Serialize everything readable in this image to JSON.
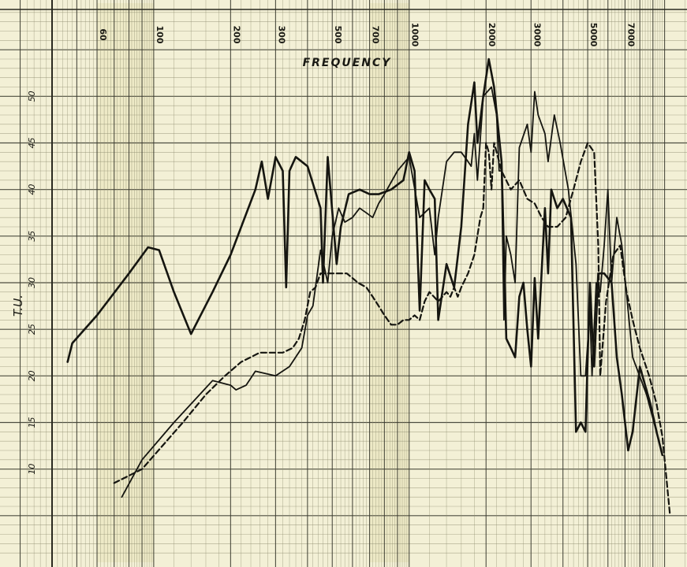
{
  "chart_data": {
    "type": "line",
    "title": "FREQUENCY",
    "ylabel": "T.U.",
    "x_scale": "log",
    "xlim": [
      40,
      11000
    ],
    "ylim": [
      0,
      60
    ],
    "x_ticks": [
      {
        "value": 60,
        "label": "60"
      },
      {
        "value": 100,
        "label": "100"
      },
      {
        "value": 200,
        "label": "200"
      },
      {
        "value": 300,
        "label": "300"
      },
      {
        "value": 500,
        "label": "500"
      },
      {
        "value": 700,
        "label": "700"
      },
      {
        "value": 1000,
        "label": "1000"
      },
      {
        "value": 2000,
        "label": "2000"
      },
      {
        "value": 3000,
        "label": "3000"
      },
      {
        "value": 5000,
        "label": "5000"
      },
      {
        "value": 7000,
        "label": "7000"
      }
    ],
    "y_ticks": [
      {
        "value": 10,
        "label": "10"
      },
      {
        "value": 15,
        "label": "15"
      },
      {
        "value": 20,
        "label": "20"
      },
      {
        "value": 25,
        "label": "25"
      },
      {
        "value": 30,
        "label": "30"
      },
      {
        "value": 35,
        "label": "35"
      },
      {
        "value": 40,
        "label": "40"
      },
      {
        "value": 45,
        "label": "45"
      },
      {
        "value": 50,
        "label": "50"
      }
    ],
    "grid": true,
    "series": [
      {
        "style": "solid",
        "points": [
          [
            46,
            21.5
          ],
          [
            48,
            23.5
          ],
          [
            60,
            26.5
          ],
          [
            80,
            31
          ],
          [
            95,
            33.8
          ],
          [
            105,
            33.5
          ],
          [
            120,
            29
          ],
          [
            140,
            24.5
          ],
          [
            170,
            29
          ],
          [
            200,
            33
          ],
          [
            250,
            40
          ],
          [
            265,
            43
          ],
          [
            280,
            39
          ],
          [
            300,
            43.5
          ],
          [
            320,
            42
          ],
          [
            330,
            29.5
          ],
          [
            340,
            42
          ],
          [
            360,
            43.5
          ],
          [
            400,
            42.5
          ],
          [
            450,
            38
          ],
          [
            460,
            30
          ],
          [
            480,
            43.5
          ],
          [
            520,
            32
          ],
          [
            540,
            36
          ],
          [
            580,
            39.5
          ],
          [
            640,
            40
          ],
          [
            700,
            39.5
          ],
          [
            760,
            39.5
          ],
          [
            850,
            40
          ],
          [
            950,
            41
          ],
          [
            1000,
            44
          ],
          [
            1050,
            42
          ],
          [
            1100,
            27
          ],
          [
            1150,
            41
          ],
          [
            1200,
            40
          ],
          [
            1260,
            39
          ],
          [
            1300,
            26
          ],
          [
            1400,
            32
          ],
          [
            1500,
            29.5
          ],
          [
            1600,
            36
          ],
          [
            1700,
            47
          ],
          [
            1800,
            51.5
          ],
          [
            1850,
            45
          ],
          [
            1950,
            50
          ],
          [
            2050,
            54
          ],
          [
            2150,
            51
          ],
          [
            2300,
            43
          ],
          [
            2400,
            24
          ],
          [
            2500,
            23
          ],
          [
            2600,
            22
          ],
          [
            2700,
            28.5
          ],
          [
            2800,
            30
          ],
          [
            2900,
            25
          ],
          [
            3000,
            21
          ],
          [
            3100,
            30.5
          ],
          [
            3200,
            24
          ],
          [
            3400,
            38
          ],
          [
            3500,
            31
          ],
          [
            3600,
            40
          ],
          [
            3800,
            38
          ],
          [
            4000,
            39
          ],
          [
            4300,
            37
          ],
          [
            4500,
            14
          ],
          [
            4700,
            15
          ],
          [
            4900,
            14
          ],
          [
            5100,
            30
          ],
          [
            5200,
            25
          ],
          [
            5300,
            21
          ],
          [
            5500,
            31
          ],
          [
            5800,
            31
          ],
          [
            6200,
            30
          ],
          [
            6500,
            22
          ],
          [
            6800,
            18
          ],
          [
            7200,
            12
          ],
          [
            7500,
            14
          ],
          [
            8000,
            21
          ],
          [
            8800,
            17
          ],
          [
            9300,
            14
          ],
          [
            9800,
            11.5
          ]
        ]
      },
      {
        "style": "solid-thin",
        "points": [
          [
            75,
            7
          ],
          [
            90,
            11
          ],
          [
            120,
            15
          ],
          [
            170,
            19.5
          ],
          [
            200,
            19
          ],
          [
            210,
            18.5
          ],
          [
            230,
            19
          ],
          [
            250,
            20.5
          ],
          [
            300,
            20
          ],
          [
            340,
            21
          ],
          [
            380,
            23
          ],
          [
            400,
            26.5
          ],
          [
            420,
            27.5
          ],
          [
            450,
            33.5
          ],
          [
            480,
            30
          ],
          [
            500,
            35
          ],
          [
            530,
            38
          ],
          [
            560,
            36.5
          ],
          [
            600,
            37
          ],
          [
            640,
            38
          ],
          [
            680,
            37.5
          ],
          [
            720,
            37
          ],
          [
            760,
            38.5
          ],
          [
            800,
            39.5
          ],
          [
            900,
            42
          ],
          [
            1000,
            43.5
          ],
          [
            1100,
            37
          ],
          [
            1200,
            38
          ],
          [
            1260,
            33
          ],
          [
            1300,
            37
          ],
          [
            1400,
            43
          ],
          [
            1500,
            44
          ],
          [
            1600,
            44
          ],
          [
            1700,
            43
          ],
          [
            1750,
            42.5
          ],
          [
            1800,
            46
          ],
          [
            1850,
            41
          ],
          [
            1950,
            50
          ],
          [
            2100,
            51
          ],
          [
            2200,
            48
          ],
          [
            2250,
            42
          ],
          [
            2300,
            42
          ],
          [
            2350,
            26
          ],
          [
            2400,
            35
          ],
          [
            2500,
            33
          ],
          [
            2600,
            30
          ],
          [
            2700,
            44.5
          ],
          [
            2900,
            47
          ],
          [
            3000,
            44
          ],
          [
            3100,
            50.5
          ],
          [
            3200,
            48
          ],
          [
            3400,
            46
          ],
          [
            3500,
            43
          ],
          [
            3700,
            48
          ],
          [
            3900,
            45
          ],
          [
            4200,
            40
          ],
          [
            4500,
            32
          ],
          [
            4700,
            20
          ],
          [
            4900,
            20
          ],
          [
            5100,
            27
          ],
          [
            5200,
            20
          ],
          [
            5400,
            30
          ],
          [
            5600,
            29
          ],
          [
            5800,
            34
          ],
          [
            6000,
            40
          ],
          [
            6200,
            30
          ],
          [
            6500,
            37
          ],
          [
            6800,
            34
          ],
          [
            7500,
            22
          ],
          [
            8500,
            18
          ],
          [
            9500,
            13
          ]
        ]
      },
      {
        "style": "dashed",
        "points": [
          [
            70,
            8.5
          ],
          [
            90,
            10
          ],
          [
            130,
            15
          ],
          [
            160,
            18
          ],
          [
            190,
            20
          ],
          [
            220,
            21.5
          ],
          [
            260,
            22.5
          ],
          [
            290,
            22.5
          ],
          [
            320,
            22.5
          ],
          [
            350,
            23
          ],
          [
            370,
            24
          ],
          [
            390,
            26
          ],
          [
            410,
            29
          ],
          [
            430,
            29.5
          ],
          [
            450,
            31
          ],
          [
            470,
            31
          ],
          [
            490,
            31
          ],
          [
            520,
            31
          ],
          [
            540,
            31
          ],
          [
            570,
            31
          ],
          [
            600,
            30.5
          ],
          [
            630,
            30
          ],
          [
            680,
            29.5
          ],
          [
            720,
            28.5
          ],
          [
            760,
            27.5
          ],
          [
            800,
            26.5
          ],
          [
            850,
            25.5
          ],
          [
            900,
            25.5
          ],
          [
            950,
            26
          ],
          [
            1000,
            26
          ],
          [
            1050,
            26.5
          ],
          [
            1100,
            26
          ],
          [
            1150,
            28
          ],
          [
            1200,
            29
          ],
          [
            1250,
            28.5
          ],
          [
            1300,
            28
          ],
          [
            1350,
            28.5
          ],
          [
            1400,
            29
          ],
          [
            1450,
            28.5
          ],
          [
            1500,
            29.5
          ],
          [
            1550,
            28.5
          ],
          [
            1600,
            29.5
          ],
          [
            1700,
            31
          ],
          [
            1800,
            33
          ],
          [
            1900,
            37
          ],
          [
            1950,
            38
          ],
          [
            2000,
            45
          ],
          [
            2050,
            44
          ],
          [
            2100,
            40
          ],
          [
            2150,
            45
          ],
          [
            2200,
            44
          ],
          [
            2300,
            42
          ],
          [
            2500,
            40
          ],
          [
            2700,
            41
          ],
          [
            2900,
            39
          ],
          [
            3100,
            38.5
          ],
          [
            3300,
            37
          ],
          [
            3500,
            36
          ],
          [
            3800,
            36
          ],
          [
            4100,
            37
          ],
          [
            4400,
            40
          ],
          [
            4700,
            43
          ],
          [
            5000,
            45
          ],
          [
            5300,
            44
          ],
          [
            5500,
            34
          ],
          [
            5600,
            20
          ],
          [
            5900,
            28
          ],
          [
            6300,
            33
          ],
          [
            6700,
            34
          ],
          [
            7100,
            29
          ],
          [
            7500,
            26
          ],
          [
            8000,
            23
          ],
          [
            8700,
            20
          ],
          [
            9300,
            17
          ],
          [
            9800,
            13.5
          ],
          [
            10500,
            5
          ]
        ]
      }
    ]
  }
}
